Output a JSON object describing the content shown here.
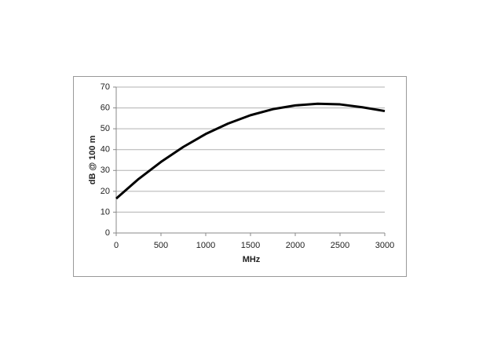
{
  "chart_data": {
    "type": "line",
    "x_label": "MHz",
    "y_label": "dB @ 100 m",
    "x": [
      0,
      250,
      500,
      750,
      1000,
      1250,
      1500,
      1750,
      2000,
      2250,
      2500,
      2750,
      3000
    ],
    "series": [
      {
        "color": "#000000",
        "values": [
          16.5,
          25.9,
          34.1,
          41.3,
          47.5,
          52.5,
          56.5,
          59.4,
          61.2,
          62.0,
          61.7,
          60.3,
          58.5
        ]
      }
    ],
    "xlim": [
      0,
      3000
    ],
    "xticks": [
      0,
      500,
      1000,
      1500,
      2000,
      2500,
      3000
    ],
    "ylim": [
      0,
      70
    ],
    "yticks": [
      0,
      10,
      20,
      30,
      40,
      50,
      60,
      70
    ],
    "grid": true
  }
}
